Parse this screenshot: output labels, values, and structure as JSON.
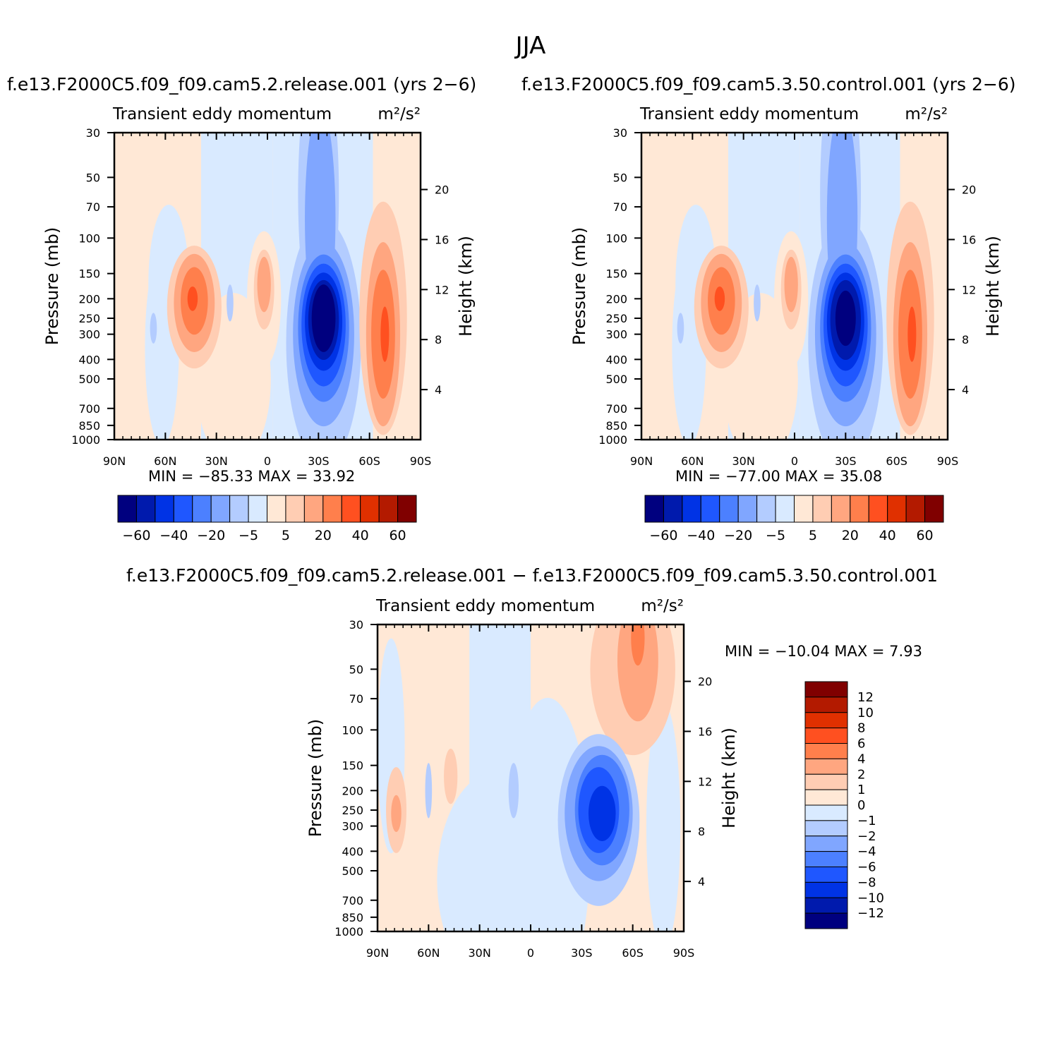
{
  "title": "JJA",
  "panels": [
    {
      "id": "p1",
      "run_title": "f.e13.F2000C5.f09_f09.cam5.2.release.001  (yrs 2−6)",
      "variable": "Transient  eddy  momentum",
      "units": "m²/s²",
      "stats": "MIN  =  −85.33    MAX  =    33.92",
      "colorbar_labels": [
        "−60",
        "−40",
        "−20",
        "−5",
        "5",
        "20",
        "40",
        "60"
      ]
    },
    {
      "id": "p2",
      "run_title": "f.e13.F2000C5.f09_f09.cam5.3.50.control.001  (yrs 2−6)",
      "variable": "Transient  eddy  momentum",
      "units": "m²/s²",
      "stats": "MIN  =  −77.00    MAX  =    35.08",
      "colorbar_labels": [
        "−60",
        "−40",
        "−20",
        "−5",
        "5",
        "20",
        "40",
        "60"
      ]
    },
    {
      "id": "p3",
      "run_title": "f.e13.F2000C5.f09_f09.cam5.2.release.001  −  f.e13.F2000C5.f09_f09.cam5.3.50.control.001",
      "variable": "Transient  eddy  momentum",
      "units": "m²/s²",
      "stats": "MIN  =  −10.04    MAX  =     7.93",
      "colorbar_labels": [
        "12",
        "10",
        "8",
        "6",
        "4",
        "2",
        "1",
        "0",
        "−1",
        "−2",
        "−4",
        "−6",
        "−8",
        "−10",
        "−12"
      ]
    }
  ],
  "axes": {
    "ylabel_left": "Pressure  (mb)",
    "ylabel_right": "Height  (km)",
    "pressure_ticks": [
      "30",
      "50",
      "70",
      "100",
      "150",
      "200",
      "250",
      "300",
      "400",
      "500",
      "700",
      "850",
      "1000"
    ],
    "height_ticks": [
      "20",
      "16",
      "12",
      "8",
      "4"
    ],
    "lat_ticks": [
      "90N",
      "60N",
      "30N",
      "0",
      "30S",
      "60S",
      "90S"
    ]
  },
  "colors": {
    "abs_palette": [
      "#00007f",
      "#001aad",
      "#0033e5",
      "#1f57ff",
      "#4c80ff",
      "#80a6ff",
      "#b3ccff",
      "#d9eaff",
      "#ffe8d6",
      "#ffcdb3",
      "#ffa680",
      "#ff7f4c",
      "#ff5020",
      "#e03000",
      "#b31a00",
      "#800000"
    ],
    "diff_palette": [
      "#800000",
      "#b31a00",
      "#e03000",
      "#ff5020",
      "#ff7f4c",
      "#ffa680",
      "#ffcdb3",
      "#ffe8d6",
      "#d9eaff",
      "#b3ccff",
      "#80a6ff",
      "#4c80ff",
      "#1f57ff",
      "#0033e5",
      "#001aad",
      "#00007f"
    ]
  },
  "chart_data": [
    {
      "type": "heatmap",
      "subtype": "filled-contour latitude-pressure cross section",
      "title": "Transient eddy momentum (m²/s²) — cam5.2.release.001 (yrs 2-6), JJA",
      "x_range": [
        "90N",
        "90S"
      ],
      "y_range_mb": [
        1000,
        30
      ],
      "levels": [
        -70,
        -60,
        -50,
        -40,
        -30,
        -20,
        -10,
        -5,
        0,
        5,
        10,
        20,
        30,
        40,
        50,
        60,
        70
      ],
      "min": -85.33,
      "max": 33.92,
      "features": [
        {
          "lat": -33,
          "p_mb": 250,
          "value": -85,
          "note": "SH jet core minimum"
        },
        {
          "lat": 43,
          "p_mb": 200,
          "value": 25,
          "note": "NH midlatitude maximum"
        },
        {
          "lat": -68,
          "p_mb": 300,
          "value": 30,
          "note": "SH high-latitude maximum"
        },
        {
          "lat": 0,
          "p_mb": 170,
          "value": 10,
          "note": "equatorial maximum"
        }
      ]
    },
    {
      "type": "heatmap",
      "subtype": "filled-contour latitude-pressure cross section",
      "title": "Transient eddy momentum (m²/s²) — cam5.3.50.control.001 (yrs 2-6), JJA",
      "x_range": [
        "90N",
        "90S"
      ],
      "y_range_mb": [
        1000,
        30
      ],
      "levels": [
        -70,
        -60,
        -50,
        -40,
        -30,
        -20,
        -10,
        -5,
        0,
        5,
        10,
        20,
        30,
        40,
        50,
        60,
        70
      ],
      "min": -77.0,
      "max": 35.08,
      "features": [
        {
          "lat": -30,
          "p_mb": 230,
          "value": -77,
          "note": "SH jet core minimum"
        },
        {
          "lat": 43,
          "p_mb": 200,
          "value": 25,
          "note": "NH midlatitude maximum"
        },
        {
          "lat": -68,
          "p_mb": 300,
          "value": 30,
          "note": "SH high-latitude maximum"
        }
      ]
    },
    {
      "type": "heatmap",
      "subtype": "filled-contour latitude-pressure cross section (difference)",
      "title": "Difference release.001 − control.001",
      "x_range": [
        "90N",
        "90S"
      ],
      "y_range_mb": [
        1000,
        30
      ],
      "levels": [
        -12,
        -10,
        -8,
        -6,
        -4,
        -2,
        -1,
        0,
        1,
        2,
        4,
        6,
        8,
        10,
        12
      ],
      "min": -10.04,
      "max": 7.93,
      "features": [
        {
          "lat": -40,
          "p_mb": 250,
          "value": -9,
          "note": "negative core"
        },
        {
          "lat": -63,
          "p_mb": 40,
          "value": 6,
          "note": "upper positive maximum"
        },
        {
          "lat": 80,
          "p_mb": 270,
          "value": 3,
          "note": "NH polar positive"
        }
      ]
    }
  ]
}
